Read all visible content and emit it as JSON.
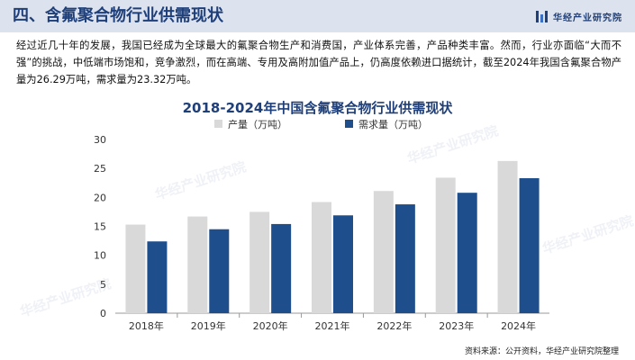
{
  "header": {
    "title": "四、含氟聚合物行业供需现状",
    "logo_text": "华经产业研究院"
  },
  "paragraph": "经过近几十年的发展，我国已经成为全球最大的氟聚合物生产和消费国，产业体系完善，产品种类丰富。然而，行业亦面临“大而不强”的挑战，中低端市场饱和，竞争激烈，而在高端、专用及高附加值产品上，仍高度依赖进口据统计，截至2024年我国含氟聚合物产量为26.29万吨，需求量为23.32万吨。",
  "watermark": "华经产业研究院",
  "source": "资料来源：公开资料，华经产业研究院整理",
  "colors": {
    "header_bg": "#dde3ee",
    "title_blue": "#1e3f7a",
    "production_bar": "#d9d9d9",
    "demand_bar": "#1f4e8c"
  },
  "chart_data": {
    "type": "bar",
    "title": "2018-2024年中国含氟聚合物行业供需现状",
    "categories": [
      "2018年",
      "2019年",
      "2020年",
      "2021年",
      "2022年",
      "2023年",
      "2024年"
    ],
    "series": [
      {
        "name": "产量（万吨）",
        "color": "#d9d9d9",
        "values": [
          15.3,
          16.7,
          17.5,
          19.2,
          21.1,
          23.4,
          26.29
        ]
      },
      {
        "name": "需求量（万吨）",
        "color": "#1f4e8c",
        "values": [
          12.4,
          14.5,
          15.4,
          16.9,
          18.8,
          20.8,
          23.32
        ]
      }
    ],
    "ylim": [
      0,
      30
    ],
    "yticks": [
      "0",
      "5",
      "10",
      "15",
      "20",
      "25",
      "30"
    ],
    "grid": false,
    "legend": "top"
  }
}
